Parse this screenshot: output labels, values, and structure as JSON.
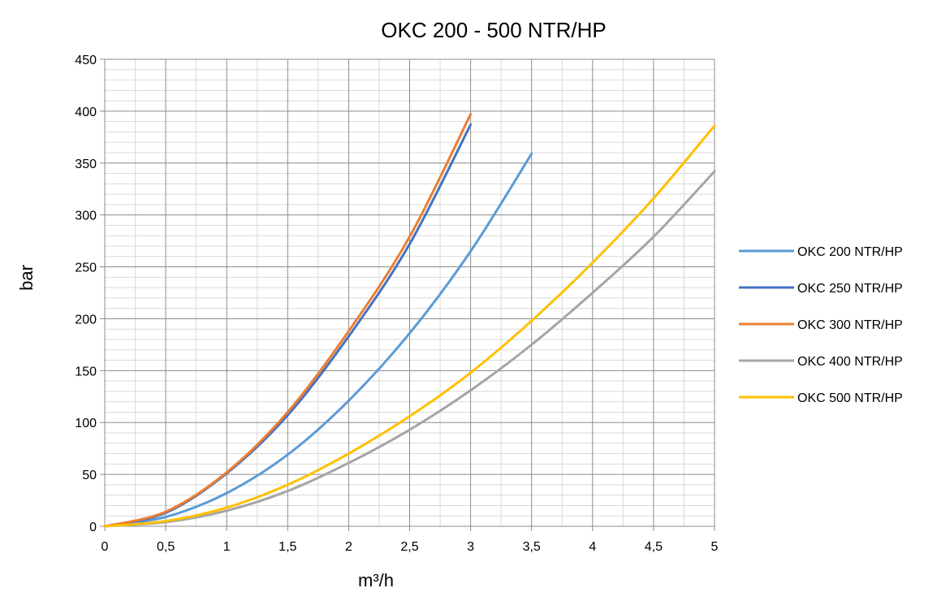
{
  "chart_data": {
    "type": "line",
    "title": "OKC 200 - 500 NTR/HP",
    "xlabel": "m³/h",
    "ylabel": "bar",
    "xlim": [
      0,
      5
    ],
    "ylim": [
      0,
      450
    ],
    "x_ticks": [
      "0",
      "0,5",
      "1",
      "1,5",
      "2",
      "2,5",
      "3",
      "3,5",
      "4",
      "4,5",
      "5"
    ],
    "y_ticks": [
      "0",
      "50",
      "100",
      "150",
      "200",
      "250",
      "300",
      "350",
      "400",
      "450"
    ],
    "grid": true,
    "legend_position": "right",
    "series": [
      {
        "name": "OKC 200 NTR/HP",
        "color": "#5B9BD5",
        "x": [
          0,
          0.5,
          1,
          1.5,
          2,
          2.5,
          3,
          3.5
        ],
        "y": [
          0,
          9,
          32,
          69,
          121,
          186,
          265,
          359
        ]
      },
      {
        "name": "OKC 250 NTR/HP",
        "color": "#4472C4",
        "x": [
          0,
          0.5,
          1,
          1.5,
          2,
          2.5,
          3
        ],
        "y": [
          0,
          13,
          51,
          107,
          183,
          272,
          387
        ]
      },
      {
        "name": "OKC 300 NTR/HP",
        "color": "#ED7D31",
        "x": [
          0,
          0.5,
          1,
          1.5,
          2,
          2.5,
          3
        ],
        "y": [
          0,
          14,
          52,
          110,
          188,
          279,
          397
        ]
      },
      {
        "name": "OKC 400 NTR/HP",
        "color": "#A5A5A5",
        "x": [
          0,
          0.5,
          1,
          1.5,
          2,
          2.5,
          3,
          3.5,
          4,
          4.5,
          5
        ],
        "y": [
          0,
          4,
          15,
          34,
          61,
          93,
          131,
          175,
          225,
          279,
          342
        ]
      },
      {
        "name": "OKC 500 NTR/HP",
        "color": "#FFC000",
        "x": [
          0,
          0.5,
          1,
          1.5,
          2,
          2.5,
          3,
          3.5,
          4,
          4.5,
          5
        ],
        "y": [
          0,
          5,
          18,
          40,
          70,
          106,
          148,
          198,
          254,
          316,
          386
        ]
      }
    ]
  }
}
